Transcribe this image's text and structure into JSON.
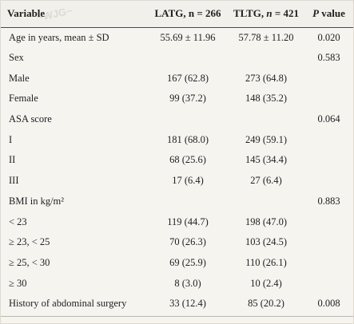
{
  "table": {
    "headers": {
      "variable": "Variable",
      "latg": "LATG, n = 266",
      "tltg_prefix": "TLTG, ",
      "tltg_n": "n",
      "tltg_suffix": " = 421",
      "p_letter": "P",
      "p_suffix": " value"
    },
    "rows": [
      {
        "label": "Age in years, mean ± SD",
        "latg": "55.69 ± 11.96",
        "tltg": "57.78 ± 11.20",
        "p": "0.020"
      },
      {
        "label": "Sex",
        "latg": "",
        "tltg": "",
        "p": "0.583"
      },
      {
        "label": "Male",
        "latg": "167 (62.8)",
        "tltg": "273 (64.8)",
        "p": ""
      },
      {
        "label": "Female",
        "latg": "99 (37.2)",
        "tltg": "148 (35.2)",
        "p": ""
      },
      {
        "label": "ASA score",
        "latg": "",
        "tltg": "",
        "p": "0.064"
      },
      {
        "label": "I",
        "latg": "181 (68.0)",
        "tltg": "249 (59.1)",
        "p": ""
      },
      {
        "label": "II",
        "latg": "68 (25.6)",
        "tltg": "145 (34.4)",
        "p": ""
      },
      {
        "label": "III",
        "latg": "17 (6.4)",
        "tltg": "27 (6.4)",
        "p": ""
      },
      {
        "label": "BMI in kg/m²",
        "latg": "",
        "tltg": "",
        "p": "0.883"
      },
      {
        "label": "< 23",
        "latg": "119 (44.7)",
        "tltg": "198 (47.0)",
        "p": ""
      },
      {
        "label": "≥ 23, < 25",
        "latg": "70 (26.3)",
        "tltg": "103 (24.5)",
        "p": ""
      },
      {
        "label": "≥ 25, < 30",
        "latg": "69 (25.9)",
        "tltg": "110 (26.1)",
        "p": ""
      },
      {
        "label": "≥ 30",
        "latg": "8 (3.0)",
        "tltg": "10 (2.4)",
        "p": ""
      },
      {
        "label": "History of abdominal surgery",
        "latg": "33 (12.4)",
        "tltg": "85 (20.2)",
        "p": "0.008"
      }
    ]
  }
}
